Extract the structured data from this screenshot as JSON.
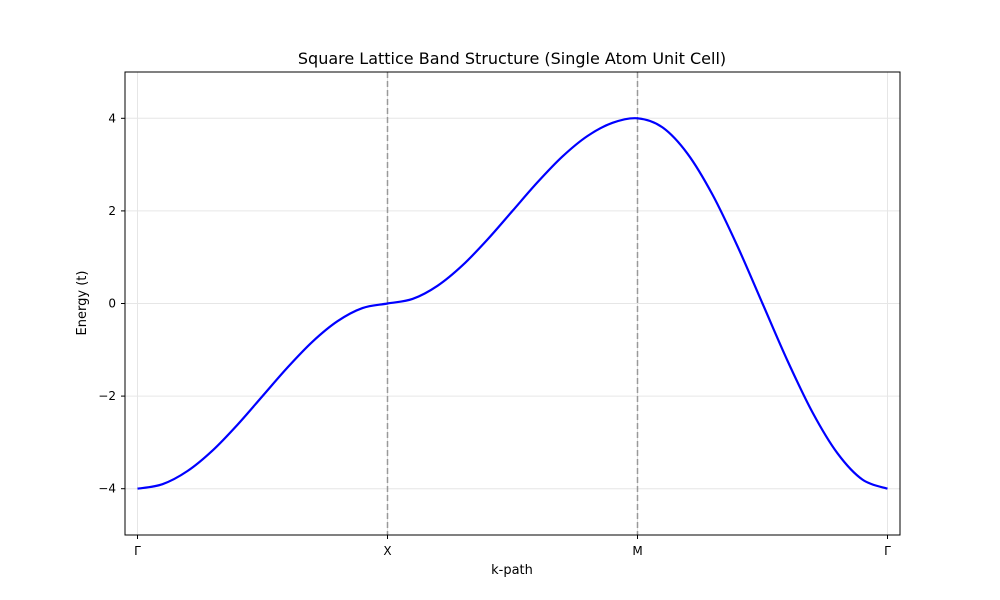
{
  "chart_data": {
    "type": "line",
    "title": "Square Lattice Band Structure (Single Atom Unit Cell)",
    "xlabel": "k-path",
    "ylabel": "Energy (t)",
    "xlim": [
      -0.05,
      3.05
    ],
    "ylim": [
      -5,
      5
    ],
    "grid": true,
    "x_ticks": [
      {
        "pos": 0,
        "label": "Γ"
      },
      {
        "pos": 1,
        "label": "X"
      },
      {
        "pos": 2,
        "label": "M"
      },
      {
        "pos": 3,
        "label": "Γ"
      }
    ],
    "y_ticks": [
      {
        "value": -4,
        "label": "−4"
      },
      {
        "value": -2,
        "label": "−2"
      },
      {
        "value": 0,
        "label": "0"
      },
      {
        "value": 2,
        "label": "2"
      },
      {
        "value": 4,
        "label": "4"
      }
    ],
    "vlines": [
      1,
      2
    ],
    "series": [
      {
        "color": "#0000ff",
        "x": [
          0,
          0.1,
          0.2,
          0.3,
          0.4,
          0.5,
          0.6,
          0.7,
          0.8,
          0.9,
          1.0,
          1.1,
          1.2,
          1.3,
          1.4,
          1.5,
          1.6,
          1.7,
          1.8,
          1.9,
          2.0,
          2.1,
          2.2,
          2.3,
          2.4,
          2.5,
          2.6,
          2.7,
          2.8,
          2.9,
          3.0
        ],
        "y": [
          -4.0,
          -3.902,
          -3.618,
          -3.176,
          -2.618,
          -2.0,
          -1.382,
          -0.824,
          -0.382,
          -0.098,
          0.0,
          0.098,
          0.382,
          0.824,
          1.382,
          2.0,
          2.618,
          3.176,
          3.618,
          3.902,
          4.0,
          3.804,
          3.236,
          2.351,
          1.236,
          0.0,
          -1.236,
          -2.351,
          -3.236,
          -3.804,
          -4.0
        ]
      }
    ],
    "colors": {
      "line": "#0000ff",
      "vline": "#999999",
      "grid": "#e6e6e6",
      "axes": "#000000"
    }
  }
}
